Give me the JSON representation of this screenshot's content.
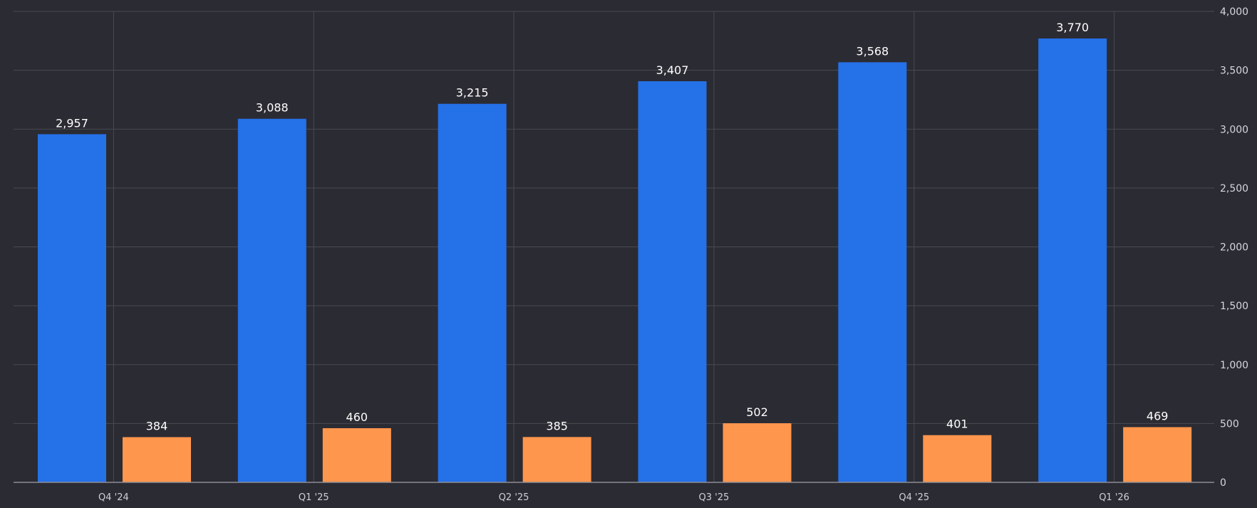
{
  "chart_data": {
    "type": "bar",
    "categories": [
      "Q4 '24",
      "Q1 '25",
      "Q2 '25",
      "Q3 '25",
      "Q4 '25",
      "Q1 '26"
    ],
    "series": [
      {
        "values": [
          2957,
          3088,
          3215,
          3407,
          3568,
          3770
        ],
        "color": "#2571e8"
      },
      {
        "values": [
          384,
          460,
          385,
          502,
          401,
          469
        ],
        "color": "#ff964d"
      }
    ],
    "data_labels": [
      [
        "2,957",
        "3,088",
        "3,215",
        "3,407",
        "3,568",
        "3,770"
      ],
      [
        "384",
        "460",
        "385",
        "502",
        "401",
        "469"
      ]
    ],
    "yticks": [
      0,
      500,
      1000,
      1500,
      2000,
      2500,
      3000,
      3500,
      4000
    ],
    "ytick_labels": [
      "0",
      "500",
      "1,000",
      "1,500",
      "2,000",
      "2,500",
      "3,000",
      "3,500",
      "4,000"
    ],
    "ylim": [
      0,
      4000
    ],
    "yaxis_position": "right",
    "grid": true,
    "legend": false,
    "colors": {
      "background": "#2b2b33",
      "grid": "#4a4a52",
      "text": "#d6d6dc"
    }
  }
}
